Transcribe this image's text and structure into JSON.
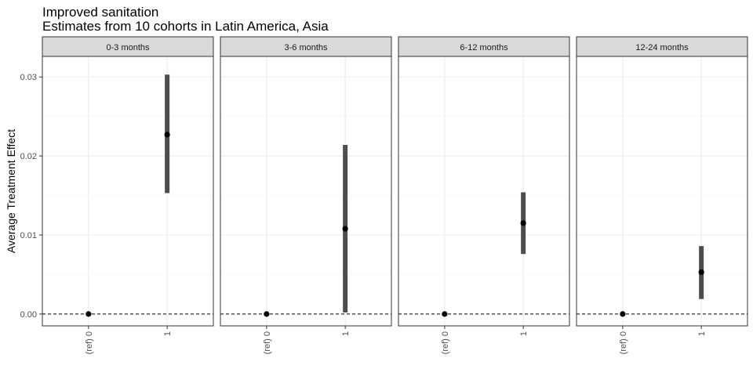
{
  "chart_data": {
    "type": "scatter",
    "title": "Improved sanitation",
    "subtitle": "Estimates from 10 cohorts in Latin America, Asia",
    "ylabel": "Average Treatment Effect",
    "xlabel": "",
    "categories": [
      "(ref) 0",
      "1"
    ],
    "ylim": [
      -0.0015,
      0.0326
    ],
    "yticks": [
      0.0,
      0.01,
      0.02,
      0.03
    ],
    "ytick_labels": [
      "0.00",
      "0.01",
      "0.02",
      "0.03"
    ],
    "reference_line": 0,
    "grid": true,
    "panels": [
      {
        "label": "0-3 months",
        "points": [
          {
            "category": "(ref) 0",
            "estimate": 0.0
          },
          {
            "category": "1",
            "estimate": 0.0227,
            "lower": 0.0153,
            "upper": 0.0303
          }
        ]
      },
      {
        "label": "3-6 months",
        "points": [
          {
            "category": "(ref) 0",
            "estimate": 0.0
          },
          {
            "category": "1",
            "estimate": 0.0108,
            "lower": 0.0002,
            "upper": 0.0214
          }
        ]
      },
      {
        "label": "6-12 months",
        "points": [
          {
            "category": "(ref) 0",
            "estimate": 0.0
          },
          {
            "category": "1",
            "estimate": 0.0115,
            "lower": 0.0076,
            "upper": 0.0154
          }
        ]
      },
      {
        "label": "12-24 months",
        "points": [
          {
            "category": "(ref) 0",
            "estimate": 0.0
          },
          {
            "category": "1",
            "estimate": 0.0053,
            "lower": 0.0019,
            "upper": 0.0086
          }
        ]
      }
    ]
  },
  "colors": {
    "strip_fill": "#d9d9d9",
    "panel_border": "#333333",
    "grid": "#ebebeb",
    "interval": "#4d4d4d",
    "point": "#000000"
  }
}
